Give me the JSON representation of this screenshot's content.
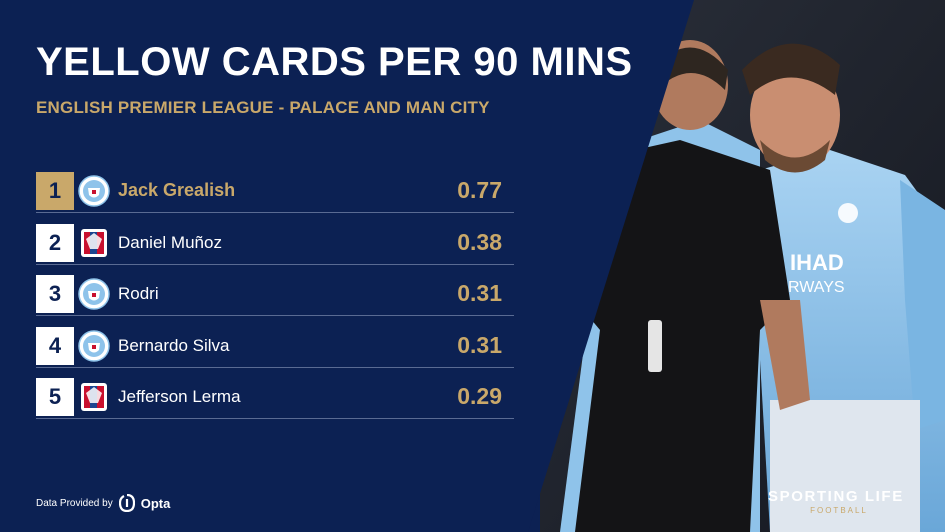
{
  "title": "YELLOW CARDS PER 90 MINS",
  "subtitle": "ENGLISH PREMIER LEAGUE - PALACE AND MAN CITY",
  "rows": [
    {
      "rank": "1",
      "club": "Manchester City",
      "name": "Jack Grealish",
      "value": "0.77"
    },
    {
      "rank": "2",
      "club": "Crystal Palace",
      "name": "Daniel Muñoz",
      "value": "0.38"
    },
    {
      "rank": "3",
      "club": "Manchester City",
      "name": "Rodri",
      "value": "0.31"
    },
    {
      "rank": "4",
      "club": "Manchester City",
      "name": "Bernardo Silva",
      "value": "0.31"
    },
    {
      "rank": "5",
      "club": "Crystal Palace",
      "name": "Jefferson Lerma",
      "value": "0.29"
    }
  ],
  "footer": {
    "provided_by": "Data Provided by",
    "provider": "Opta"
  },
  "brand": {
    "name": "SPORTING LIFE",
    "sub": "FOOTBALL"
  },
  "colors": {
    "navy": "#0c2153",
    "gold": "#c9a86a",
    "city_blue": "#8ec3ea",
    "palace_red": "#c8102e",
    "palace_blue": "#1b458f"
  }
}
